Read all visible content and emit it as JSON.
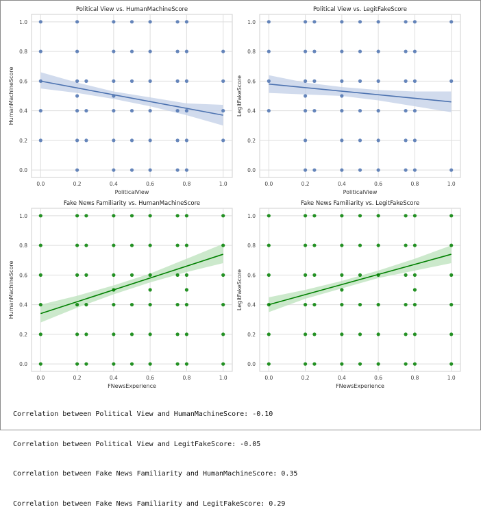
{
  "colors": {
    "blue": "#4c72b0",
    "green": "#008000",
    "blue_band": "#c5d2e8",
    "green_band": "#bfe3bf",
    "grid": "#dddddd"
  },
  "chart_data": [
    {
      "type": "scatter",
      "title": "Political View vs. HumanMachineScore",
      "xlabel": "PoliticalView",
      "ylabel": "HumanMachineScore",
      "xlim": [
        -0.05,
        1.05
      ],
      "ylim": [
        -0.05,
        1.05
      ],
      "xticks": [
        "0.0",
        "0.2",
        "0.4",
        "0.6",
        "0.8",
        "1.0"
      ],
      "yticks": [
        "0.0",
        "0.2",
        "0.4",
        "0.6",
        "0.8",
        "1.0"
      ],
      "color": "blue",
      "band": "blue_band",
      "fit": {
        "x": [
          0,
          1
        ],
        "y": [
          0.6,
          0.37
        ]
      },
      "ci": {
        "x": [
          0,
          0.2,
          0.4,
          0.6,
          0.8,
          1.0
        ],
        "lower": [
          0.55,
          0.52,
          0.48,
          0.43,
          0.37,
          0.3
        ],
        "upper": [
          0.66,
          0.59,
          0.53,
          0.49,
          0.45,
          0.44
        ]
      },
      "points": [
        [
          0,
          1
        ],
        [
          0,
          0.8
        ],
        [
          0,
          0.6
        ],
        [
          0,
          0.4
        ],
        [
          0,
          0.2
        ],
        [
          0.2,
          1
        ],
        [
          0.2,
          0.8
        ],
        [
          0.2,
          0.6
        ],
        [
          0.2,
          0.5
        ],
        [
          0.2,
          0.4
        ],
        [
          0.2,
          0.2
        ],
        [
          0.2,
          0
        ],
        [
          0.25,
          0.6
        ],
        [
          0.25,
          0.4
        ],
        [
          0.25,
          0.2
        ],
        [
          0.4,
          1
        ],
        [
          0.4,
          0.8
        ],
        [
          0.4,
          0.6
        ],
        [
          0.4,
          0.5
        ],
        [
          0.4,
          0.4
        ],
        [
          0.4,
          0.2
        ],
        [
          0.4,
          0
        ],
        [
          0.5,
          1
        ],
        [
          0.5,
          0.8
        ],
        [
          0.5,
          0.6
        ],
        [
          0.5,
          0.4
        ],
        [
          0.5,
          0.2
        ],
        [
          0.5,
          0
        ],
        [
          0.6,
          1
        ],
        [
          0.6,
          0.8
        ],
        [
          0.6,
          0.6
        ],
        [
          0.6,
          0.4
        ],
        [
          0.6,
          0.2
        ],
        [
          0.6,
          0
        ],
        [
          0.75,
          1
        ],
        [
          0.75,
          0.8
        ],
        [
          0.75,
          0.6
        ],
        [
          0.75,
          0.4
        ],
        [
          0.75,
          0.2
        ],
        [
          0.75,
          0
        ],
        [
          0.8,
          1
        ],
        [
          0.8,
          0.8
        ],
        [
          0.8,
          0.6
        ],
        [
          0.8,
          0.4
        ],
        [
          0.8,
          0.2
        ],
        [
          0.8,
          0
        ],
        [
          1,
          0.8
        ],
        [
          1,
          0.6
        ],
        [
          1,
          0.4
        ],
        [
          1,
          0.2
        ]
      ]
    },
    {
      "type": "scatter",
      "title": "Political View vs. LegitFakeScore",
      "xlabel": "PoliticalView",
      "ylabel": "LegitFakeScore",
      "xlim": [
        -0.05,
        1.05
      ],
      "ylim": [
        -0.05,
        1.05
      ],
      "xticks": [
        "0.0",
        "0.2",
        "0.4",
        "0.6",
        "0.8",
        "1.0"
      ],
      "yticks": [
        "0.0",
        "0.2",
        "0.4",
        "0.6",
        "0.8",
        "1.0"
      ],
      "color": "blue",
      "band": "blue_band",
      "fit": {
        "x": [
          0,
          1
        ],
        "y": [
          0.58,
          0.46
        ]
      },
      "ci": {
        "x": [
          0,
          0.2,
          0.4,
          0.6,
          0.8,
          1.0
        ],
        "lower": [
          0.52,
          0.51,
          0.5,
          0.47,
          0.43,
          0.39
        ],
        "upper": [
          0.64,
          0.59,
          0.56,
          0.54,
          0.53,
          0.53
        ]
      },
      "points": [
        [
          0,
          1
        ],
        [
          0,
          0.8
        ],
        [
          0,
          0.6
        ],
        [
          0,
          0.4
        ],
        [
          0.2,
          1
        ],
        [
          0.2,
          0.8
        ],
        [
          0.2,
          0.6
        ],
        [
          0.2,
          0.5
        ],
        [
          0.2,
          0.4
        ],
        [
          0.2,
          0.2
        ],
        [
          0.2,
          0
        ],
        [
          0.25,
          1
        ],
        [
          0.25,
          0.8
        ],
        [
          0.25,
          0.6
        ],
        [
          0.25,
          0.4
        ],
        [
          0.25,
          0
        ],
        [
          0.4,
          1
        ],
        [
          0.4,
          0.8
        ],
        [
          0.4,
          0.6
        ],
        [
          0.4,
          0.5
        ],
        [
          0.4,
          0.4
        ],
        [
          0.4,
          0.2
        ],
        [
          0.4,
          0
        ],
        [
          0.5,
          1
        ],
        [
          0.5,
          0.8
        ],
        [
          0.5,
          0.6
        ],
        [
          0.5,
          0.4
        ],
        [
          0.5,
          0.2
        ],
        [
          0.5,
          0
        ],
        [
          0.6,
          1
        ],
        [
          0.6,
          0.8
        ],
        [
          0.6,
          0.6
        ],
        [
          0.6,
          0.4
        ],
        [
          0.6,
          0.2
        ],
        [
          0.6,
          0
        ],
        [
          0.75,
          1
        ],
        [
          0.75,
          0.8
        ],
        [
          0.75,
          0.6
        ],
        [
          0.75,
          0.4
        ],
        [
          0.75,
          0.2
        ],
        [
          0.75,
          0
        ],
        [
          0.8,
          1
        ],
        [
          0.8,
          0.8
        ],
        [
          0.8,
          0.6
        ],
        [
          0.8,
          0.4
        ],
        [
          0.8,
          0.2
        ],
        [
          0.8,
          0
        ],
        [
          1,
          1
        ],
        [
          1,
          0.6
        ],
        [
          1,
          0
        ]
      ]
    },
    {
      "type": "scatter",
      "title": "Fake News Familiarity vs. HumanMachineScore",
      "xlabel": "FNewsExperience",
      "ylabel": "HumanMachineScore",
      "xlim": [
        -0.05,
        1.05
      ],
      "ylim": [
        -0.05,
        1.05
      ],
      "xticks": [
        "0.0",
        "0.2",
        "0.4",
        "0.6",
        "0.8",
        "1.0"
      ],
      "yticks": [
        "0.0",
        "0.2",
        "0.4",
        "0.6",
        "0.8",
        "1.0"
      ],
      "color": "green",
      "band": "green_band",
      "fit": {
        "x": [
          0,
          1
        ],
        "y": [
          0.34,
          0.74
        ]
      },
      "ci": {
        "x": [
          0,
          0.2,
          0.4,
          0.6,
          0.8,
          1.0
        ],
        "lower": [
          0.28,
          0.38,
          0.47,
          0.55,
          0.62,
          0.68
        ],
        "upper": [
          0.4,
          0.46,
          0.53,
          0.61,
          0.71,
          0.81
        ]
      },
      "points": [
        [
          0,
          1
        ],
        [
          0,
          0.8
        ],
        [
          0,
          0.6
        ],
        [
          0,
          0.4
        ],
        [
          0,
          0.2
        ],
        [
          0,
          0
        ],
        [
          0.2,
          1
        ],
        [
          0.2,
          0.8
        ],
        [
          0.2,
          0.6
        ],
        [
          0.2,
          0.4
        ],
        [
          0.2,
          0.2
        ],
        [
          0.2,
          0
        ],
        [
          0.25,
          1
        ],
        [
          0.25,
          0.8
        ],
        [
          0.25,
          0.6
        ],
        [
          0.25,
          0.4
        ],
        [
          0.25,
          0.2
        ],
        [
          0.25,
          0
        ],
        [
          0.4,
          1
        ],
        [
          0.4,
          0.8
        ],
        [
          0.4,
          0.6
        ],
        [
          0.4,
          0.5
        ],
        [
          0.4,
          0.4
        ],
        [
          0.4,
          0.2
        ],
        [
          0.4,
          0
        ],
        [
          0.5,
          1
        ],
        [
          0.5,
          0.8
        ],
        [
          0.5,
          0.6
        ],
        [
          0.5,
          0.4
        ],
        [
          0.5,
          0.2
        ],
        [
          0.5,
          0
        ],
        [
          0.6,
          1
        ],
        [
          0.6,
          0.8
        ],
        [
          0.6,
          0.6
        ],
        [
          0.6,
          0.5
        ],
        [
          0.6,
          0.4
        ],
        [
          0.6,
          0.2
        ],
        [
          0.6,
          0
        ],
        [
          0.75,
          1
        ],
        [
          0.75,
          0.8
        ],
        [
          0.75,
          0.6
        ],
        [
          0.75,
          0.4
        ],
        [
          0.75,
          0.2
        ],
        [
          0.75,
          0
        ],
        [
          0.8,
          1
        ],
        [
          0.8,
          0.8
        ],
        [
          0.8,
          0.6
        ],
        [
          0.8,
          0.5
        ],
        [
          0.8,
          0.4
        ],
        [
          0.8,
          0.2
        ],
        [
          0.8,
          0
        ],
        [
          1,
          1
        ],
        [
          1,
          0.8
        ],
        [
          1,
          0.6
        ],
        [
          1,
          0.4
        ],
        [
          1,
          0.2
        ],
        [
          1,
          0
        ]
      ]
    },
    {
      "type": "scatter",
      "title": "Fake News Familiarity vs. LegitFakeScore",
      "xlabel": "FNewsExperience",
      "ylabel": "LegitFakeScore",
      "xlim": [
        -0.05,
        1.05
      ],
      "ylim": [
        -0.05,
        1.05
      ],
      "xticks": [
        "0.0",
        "0.2",
        "0.4",
        "0.6",
        "0.8",
        "1.0"
      ],
      "yticks": [
        "0.0",
        "0.2",
        "0.4",
        "0.6",
        "0.8",
        "1.0"
      ],
      "color": "green",
      "band": "green_band",
      "fit": {
        "x": [
          0,
          1
        ],
        "y": [
          0.4,
          0.74
        ]
      },
      "ci": {
        "x": [
          0,
          0.2,
          0.4,
          0.6,
          0.8,
          1.0
        ],
        "lower": [
          0.35,
          0.44,
          0.51,
          0.58,
          0.63,
          0.68
        ],
        "upper": [
          0.45,
          0.5,
          0.56,
          0.63,
          0.71,
          0.8
        ]
      },
      "points": [
        [
          0,
          1
        ],
        [
          0,
          0.8
        ],
        [
          0,
          0.6
        ],
        [
          0,
          0.4
        ],
        [
          0,
          0.2
        ],
        [
          0,
          0
        ],
        [
          0.2,
          1
        ],
        [
          0.2,
          0.8
        ],
        [
          0.2,
          0.6
        ],
        [
          0.2,
          0.4
        ],
        [
          0.2,
          0.2
        ],
        [
          0.2,
          0
        ],
        [
          0.25,
          1
        ],
        [
          0.25,
          0.8
        ],
        [
          0.25,
          0.6
        ],
        [
          0.25,
          0.4
        ],
        [
          0.25,
          0.2
        ],
        [
          0.25,
          0
        ],
        [
          0.4,
          1
        ],
        [
          0.4,
          0.8
        ],
        [
          0.4,
          0.6
        ],
        [
          0.4,
          0.5
        ],
        [
          0.4,
          0.4
        ],
        [
          0.4,
          0.2
        ],
        [
          0.4,
          0
        ],
        [
          0.5,
          1
        ],
        [
          0.5,
          0.8
        ],
        [
          0.5,
          0.6
        ],
        [
          0.5,
          0.4
        ],
        [
          0.5,
          0.2
        ],
        [
          0.5,
          0
        ],
        [
          0.6,
          1
        ],
        [
          0.6,
          0.8
        ],
        [
          0.6,
          0.6
        ],
        [
          0.6,
          0.4
        ],
        [
          0.6,
          0.2
        ],
        [
          0.6,
          0
        ],
        [
          0.75,
          1
        ],
        [
          0.75,
          0.8
        ],
        [
          0.75,
          0.6
        ],
        [
          0.75,
          0.4
        ],
        [
          0.75,
          0.2
        ],
        [
          0.75,
          0
        ],
        [
          0.8,
          1
        ],
        [
          0.8,
          0.8
        ],
        [
          0.8,
          0.6
        ],
        [
          0.8,
          0.5
        ],
        [
          0.8,
          0.4
        ],
        [
          0.8,
          0.2
        ],
        [
          0.8,
          0
        ],
        [
          1,
          1
        ],
        [
          1,
          0.8
        ],
        [
          1,
          0.6
        ],
        [
          1,
          0.4
        ],
        [
          1,
          0.2
        ],
        [
          1,
          0
        ]
      ]
    }
  ],
  "output": {
    "lines": [
      "Correlation between Political View and HumanMachineScore: -0.10",
      "Correlation between Political View and LegitFakeScore: -0.05",
      "Correlation between Fake News Familiarity and HumanMachineScore: 0.35",
      "Correlation between Fake News Familiarity and LegitFakeScore: 0.29"
    ]
  }
}
